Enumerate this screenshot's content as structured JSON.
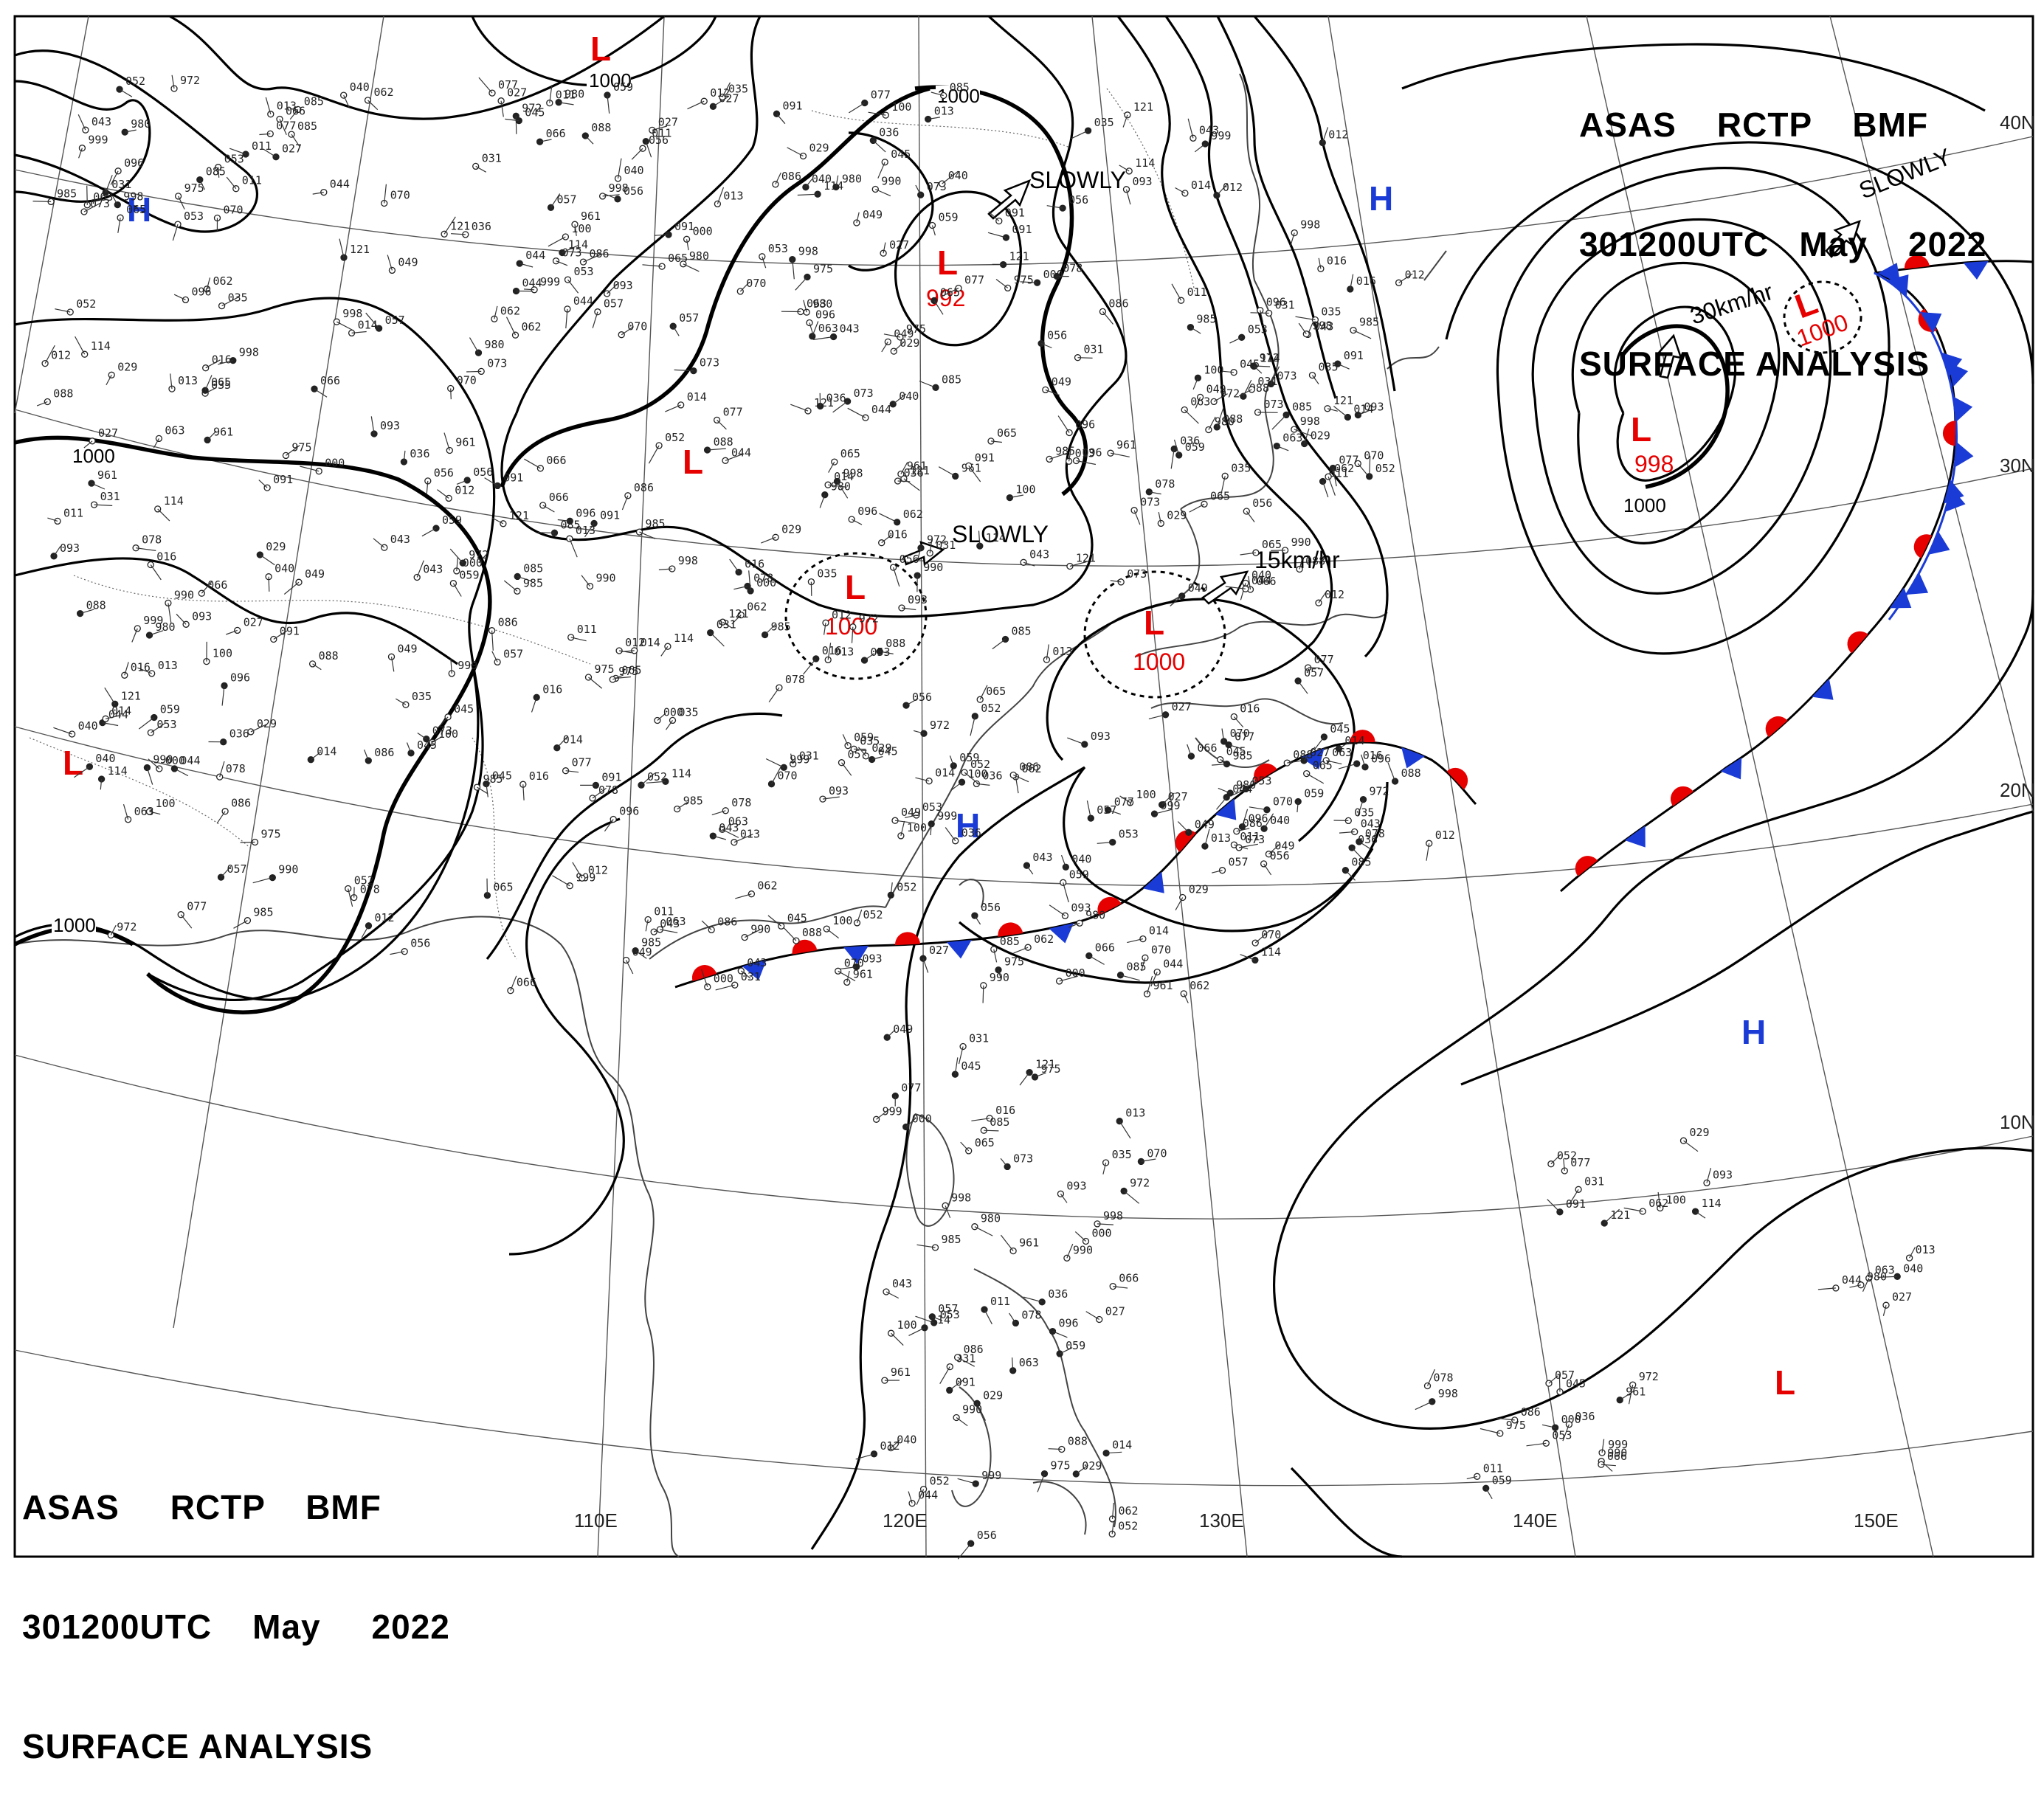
{
  "header_top": {
    "line1": "ASAS    RCTP    BMF",
    "line2": "301200UTC   May    2022",
    "line3": "SURFACE ANALYSIS"
  },
  "header_bottom": {
    "line1": "ASAS     RCTP    BMF",
    "line2": "301200UTC    May     2022",
    "line3": "SURFACE ANALYSIS"
  },
  "latitude_labels": [
    "40N",
    "30N",
    "20N",
    "10N"
  ],
  "longitude_labels": [
    "110E",
    "120E",
    "130E",
    "140E",
    "150E"
  ],
  "isobar_labels": [
    "1000",
    "1000",
    "1000",
    "1000",
    "1000"
  ],
  "pressure_systems": [
    {
      "type": "L",
      "value": "992"
    },
    {
      "type": "L",
      "value": "1000"
    },
    {
      "type": "L",
      "value": "1000"
    },
    {
      "type": "L",
      "value": "998"
    },
    {
      "type": "L",
      "value": "1000"
    },
    {
      "type": "L",
      "value": ""
    },
    {
      "type": "L",
      "value": ""
    },
    {
      "type": "L",
      "value": ""
    },
    {
      "type": "L",
      "value": ""
    },
    {
      "type": "H",
      "value": ""
    },
    {
      "type": "H",
      "value": ""
    },
    {
      "type": "H",
      "value": ""
    },
    {
      "type": "H",
      "value": ""
    }
  ],
  "movement_labels": [
    "SLOWLY",
    "SLOWLY",
    "15km/hr",
    "30km/hr",
    "SLOWLY"
  ],
  "colors": {
    "low": "#e60000",
    "high": "#1a3bd6",
    "warm_front": "#e60000",
    "cold_front": "#1a3bd6",
    "isobar": "#000000",
    "grid": "#555555",
    "coast": "#444444"
  },
  "station_samples": [
    "040",
    "027",
    "044",
    "013",
    "980",
    "985",
    "014",
    "016",
    "035",
    "012",
    "049",
    "043",
    "073",
    "056",
    "070",
    "065",
    "085",
    "096",
    "088",
    "091",
    "114",
    "121",
    "100",
    "093",
    "077",
    "062",
    "052",
    "031",
    "029",
    "998",
    "999",
    "000",
    "975",
    "990",
    "961",
    "972",
    "011",
    "036",
    "045",
    "057",
    "078",
    "066",
    "053",
    "086",
    "059",
    "063"
  ]
}
